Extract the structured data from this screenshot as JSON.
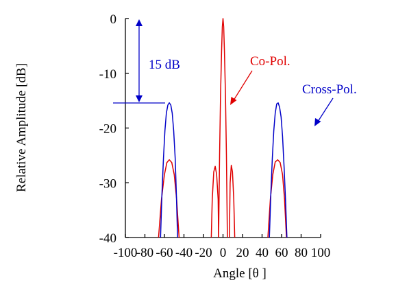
{
  "chart_data": {
    "type": "line",
    "title": "",
    "xlabel": "Angle [θ ]",
    "ylabel": "Relative Amplitude [dB]",
    "xlim": [
      -100,
      100
    ],
    "ylim": [
      -40,
      0
    ],
    "xticks": [
      "-100",
      "-80",
      "-60",
      "-40",
      "-20",
      "0",
      "20",
      "40",
      "60",
      "80",
      "100"
    ],
    "yticks": [
      "0",
      "-10",
      "-20",
      "-30",
      "-40"
    ],
    "grid": false,
    "legend": "none",
    "series": [
      {
        "name": "Co-Pol.",
        "color": "#e00000",
        "segments": [
          [
            [
              -66,
              -40
            ],
            [
              -63,
              -33
            ],
            [
              -60,
              -28.5
            ],
            [
              -57.5,
              -26.3
            ],
            [
              -55,
              -25.8
            ],
            [
              -52.5,
              -26.3
            ],
            [
              -50,
              -28.5
            ],
            [
              -47.5,
              -33
            ],
            [
              -45,
              -40
            ]
          ],
          [
            [
              -12,
              -40
            ],
            [
              -11,
              -33
            ],
            [
              -9.5,
              -28
            ],
            [
              -8,
              -27
            ],
            [
              -6.5,
              -28.5
            ],
            [
              -5,
              -33
            ],
            [
              -4.5,
              -40
            ]
          ],
          [
            [
              -4.5,
              -40
            ],
            [
              -3.5,
              -25
            ],
            [
              -2.5,
              -14
            ],
            [
              -1.5,
              -6
            ],
            [
              -0.7,
              -1.5
            ],
            [
              0,
              0
            ],
            [
              0.7,
              -1.5
            ],
            [
              1.5,
              -6
            ],
            [
              2.5,
              -14
            ],
            [
              3.5,
              -25
            ],
            [
              4.5,
              -40
            ]
          ],
          [
            [
              6.5,
              -40
            ],
            [
              7.3,
              -30
            ],
            [
              8.5,
              -26.8
            ],
            [
              9.7,
              -28
            ],
            [
              11,
              -33
            ],
            [
              12,
              -40
            ]
          ],
          [
            [
              46,
              -40
            ],
            [
              48.5,
              -33
            ],
            [
              51,
              -28.5
            ],
            [
              53.5,
              -26.2
            ],
            [
              56,
              -25.8
            ],
            [
              58.5,
              -26.3
            ],
            [
              61,
              -28.5
            ],
            [
              63,
              -33
            ],
            [
              65,
              -40
            ]
          ]
        ]
      },
      {
        "name": "Cross-Pol.",
        "color": "#0000c8",
        "segments": [
          [
            [
              -64,
              -40
            ],
            [
              -62.5,
              -32
            ],
            [
              -61,
              -25.5
            ],
            [
              -59.5,
              -20.5
            ],
            [
              -58,
              -17.3
            ],
            [
              -56.5,
              -15.8
            ],
            [
              -55,
              -15.4
            ],
            [
              -53.5,
              -15.8
            ],
            [
              -52,
              -17.3
            ],
            [
              -50.5,
              -20.5
            ],
            [
              -49,
              -25.5
            ],
            [
              -47.8,
              -32
            ],
            [
              -46.5,
              -40
            ]
          ],
          [
            [
              47.5,
              -40
            ],
            [
              49,
              -32
            ],
            [
              50.5,
              -25.5
            ],
            [
              52,
              -20.5
            ],
            [
              53.5,
              -17.3
            ],
            [
              55,
              -15.6
            ],
            [
              56.5,
              -15.4
            ],
            [
              58,
              -16.2
            ],
            [
              59.5,
              -18
            ],
            [
              61,
              -21.5
            ],
            [
              62.5,
              -27
            ],
            [
              64,
              -33
            ],
            [
              65.5,
              -40
            ]
          ]
        ]
      }
    ],
    "annotations": [
      {
        "text": "15 dB",
        "color": "#0000c8"
      },
      {
        "text": "Co-Pol.",
        "color": "#e00000"
      },
      {
        "text": "Cross-Pol.",
        "color": "#0000c8"
      }
    ]
  }
}
